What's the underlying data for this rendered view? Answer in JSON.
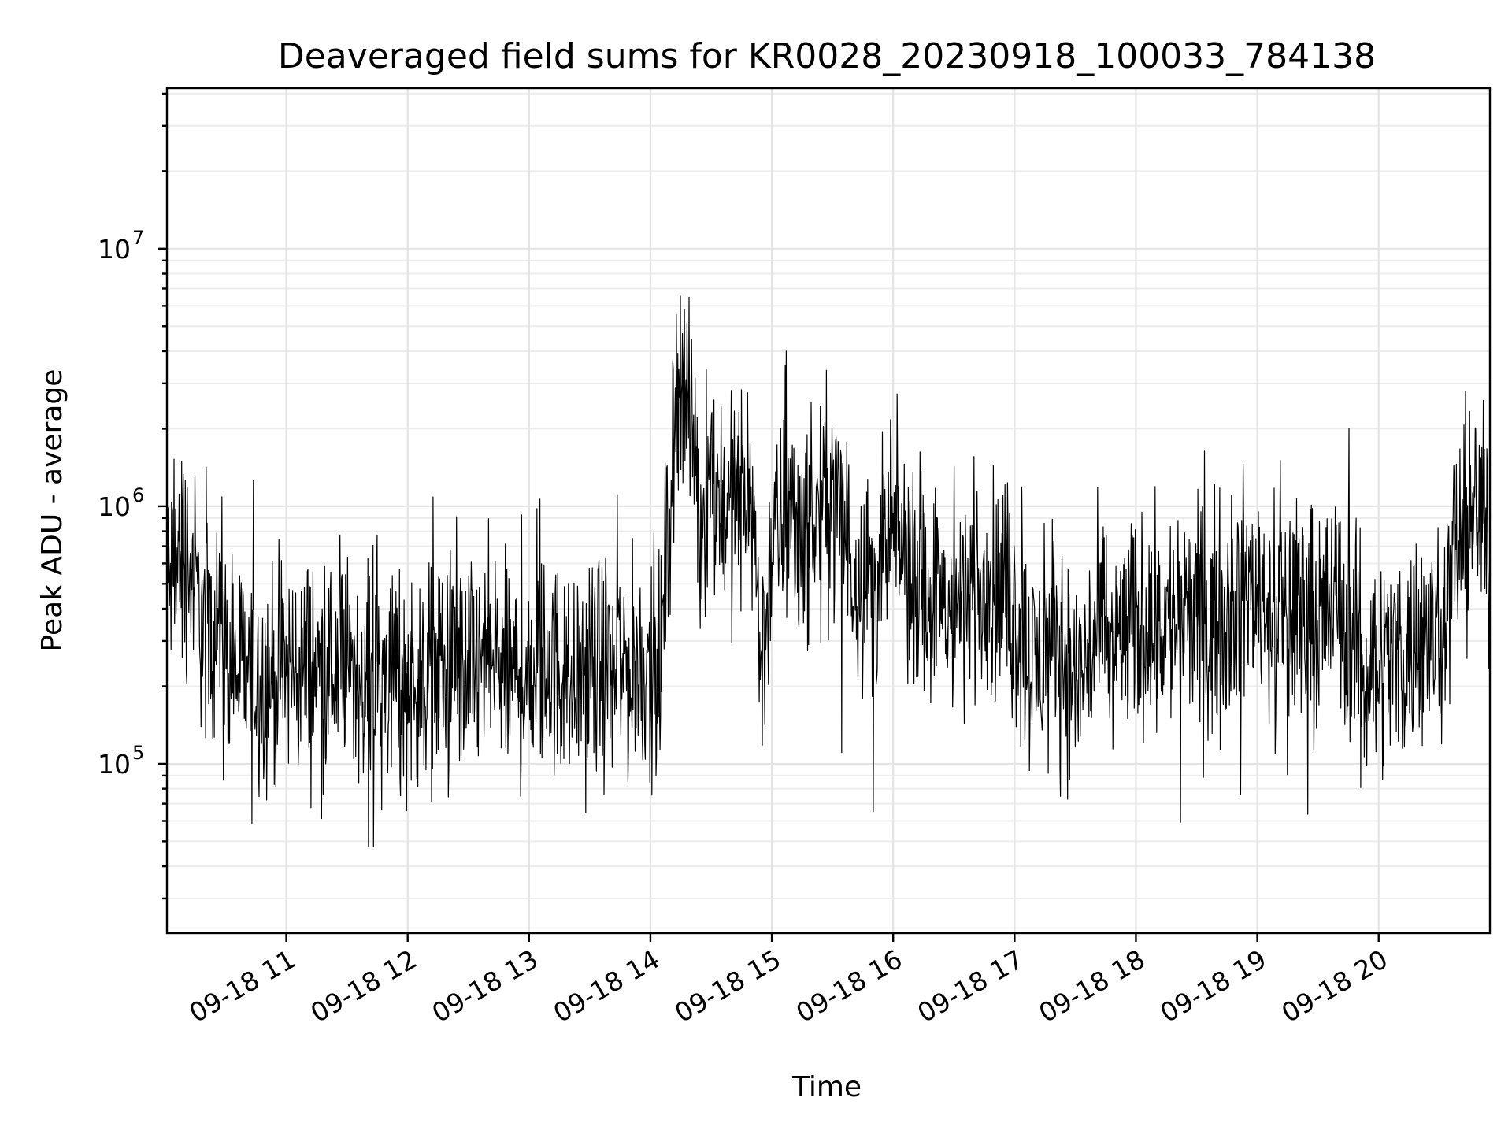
{
  "chart_data": {
    "type": "line",
    "title": "Deaveraged field sums for KR0028_20230918_100033_784138",
    "xlabel": "Time",
    "ylabel": "Peak ADU - average",
    "y_scale": "log",
    "ylim": [
      22000,
      42000000
    ],
    "xlim": [
      "09-18 10:01",
      "09-18 20:55"
    ],
    "x_ticks": [
      "09-18 11",
      "09-18 12",
      "09-18 13",
      "09-18 14",
      "09-18 15",
      "09-18 16",
      "09-18 17",
      "09-18 18",
      "09-18 19",
      "09-18 20"
    ],
    "y_ticks": [
      {
        "base": "10",
        "exp": "5",
        "value": 100000
      },
      {
        "base": "10",
        "exp": "6",
        "value": 1000000
      },
      {
        "base": "10",
        "exp": "7",
        "value": 10000000
      }
    ],
    "grid": true,
    "line_color": "#000000",
    "series": [
      {
        "x": [
          "09-18 10:01",
          "09-18 10:05",
          "09-18 10:10",
          "09-18 10:15",
          "09-18 10:20",
          "09-18 10:25",
          "09-18 10:30",
          "09-18 10:40",
          "09-18 10:50",
          "09-18 11:00",
          "09-18 11:10",
          "09-18 11:20",
          "09-18 11:30",
          "09-18 11:40",
          "09-18 11:50",
          "09-18 12:00",
          "09-18 12:10",
          "09-18 12:20",
          "09-18 12:30",
          "09-18 12:40",
          "09-18 12:50",
          "09-18 13:00",
          "09-18 13:10",
          "09-18 13:20",
          "09-18 13:30",
          "09-18 13:40",
          "09-18 13:50",
          "09-18 14:00",
          "09-18 14:05",
          "09-18 14:10",
          "09-18 14:15",
          "09-18 14:20",
          "09-18 14:25",
          "09-18 14:30",
          "09-18 14:40",
          "09-18 14:50",
          "09-18 14:55",
          "09-18 15:00",
          "09-18 15:10",
          "09-18 15:20",
          "09-18 15:30",
          "09-18 15:40",
          "09-18 15:50",
          "09-18 16:00",
          "09-18 16:10",
          "09-18 16:20",
          "09-18 16:30",
          "09-18 16:40",
          "09-18 16:50",
          "09-18 17:00",
          "09-18 17:10",
          "09-18 17:20",
          "09-18 17:30",
          "09-18 17:40",
          "09-18 17:50",
          "09-18 18:00",
          "09-18 18:10",
          "09-18 18:20",
          "09-18 18:30",
          "09-18 18:40",
          "09-18 18:50",
          "09-18 19:00",
          "09-18 19:10",
          "09-18 19:20",
          "09-18 19:30",
          "09-18 19:40",
          "09-18 19:50",
          "09-18 20:00",
          "09-18 20:10",
          "09-18 20:20",
          "09-18 20:30",
          "09-18 20:40",
          "09-18 20:50",
          "09-18 20:55"
        ],
        "values": [
          450000,
          600000,
          650000,
          500000,
          300000,
          400000,
          250000,
          220000,
          210000,
          230000,
          240000,
          225000,
          240000,
          230000,
          225000,
          210000,
          230000,
          240000,
          220000,
          260000,
          215000,
          230000,
          240000,
          210000,
          220000,
          250000,
          230000,
          250000,
          230000,
          1200000,
          4000000,
          2000000,
          900000,
          1100000,
          1000000,
          1200000,
          230000,
          700000,
          950000,
          800000,
          1200000,
          600000,
          500000,
          750000,
          600000,
          450000,
          380000,
          500000,
          480000,
          380000,
          230000,
          320000,
          200000,
          300000,
          310000,
          340000,
          360000,
          350000,
          380000,
          370000,
          420000,
          500000,
          360000,
          400000,
          390000,
          420000,
          270000,
          250000,
          270000,
          280000,
          320000,
          800000,
          950000,
          700000
        ]
      }
    ]
  }
}
